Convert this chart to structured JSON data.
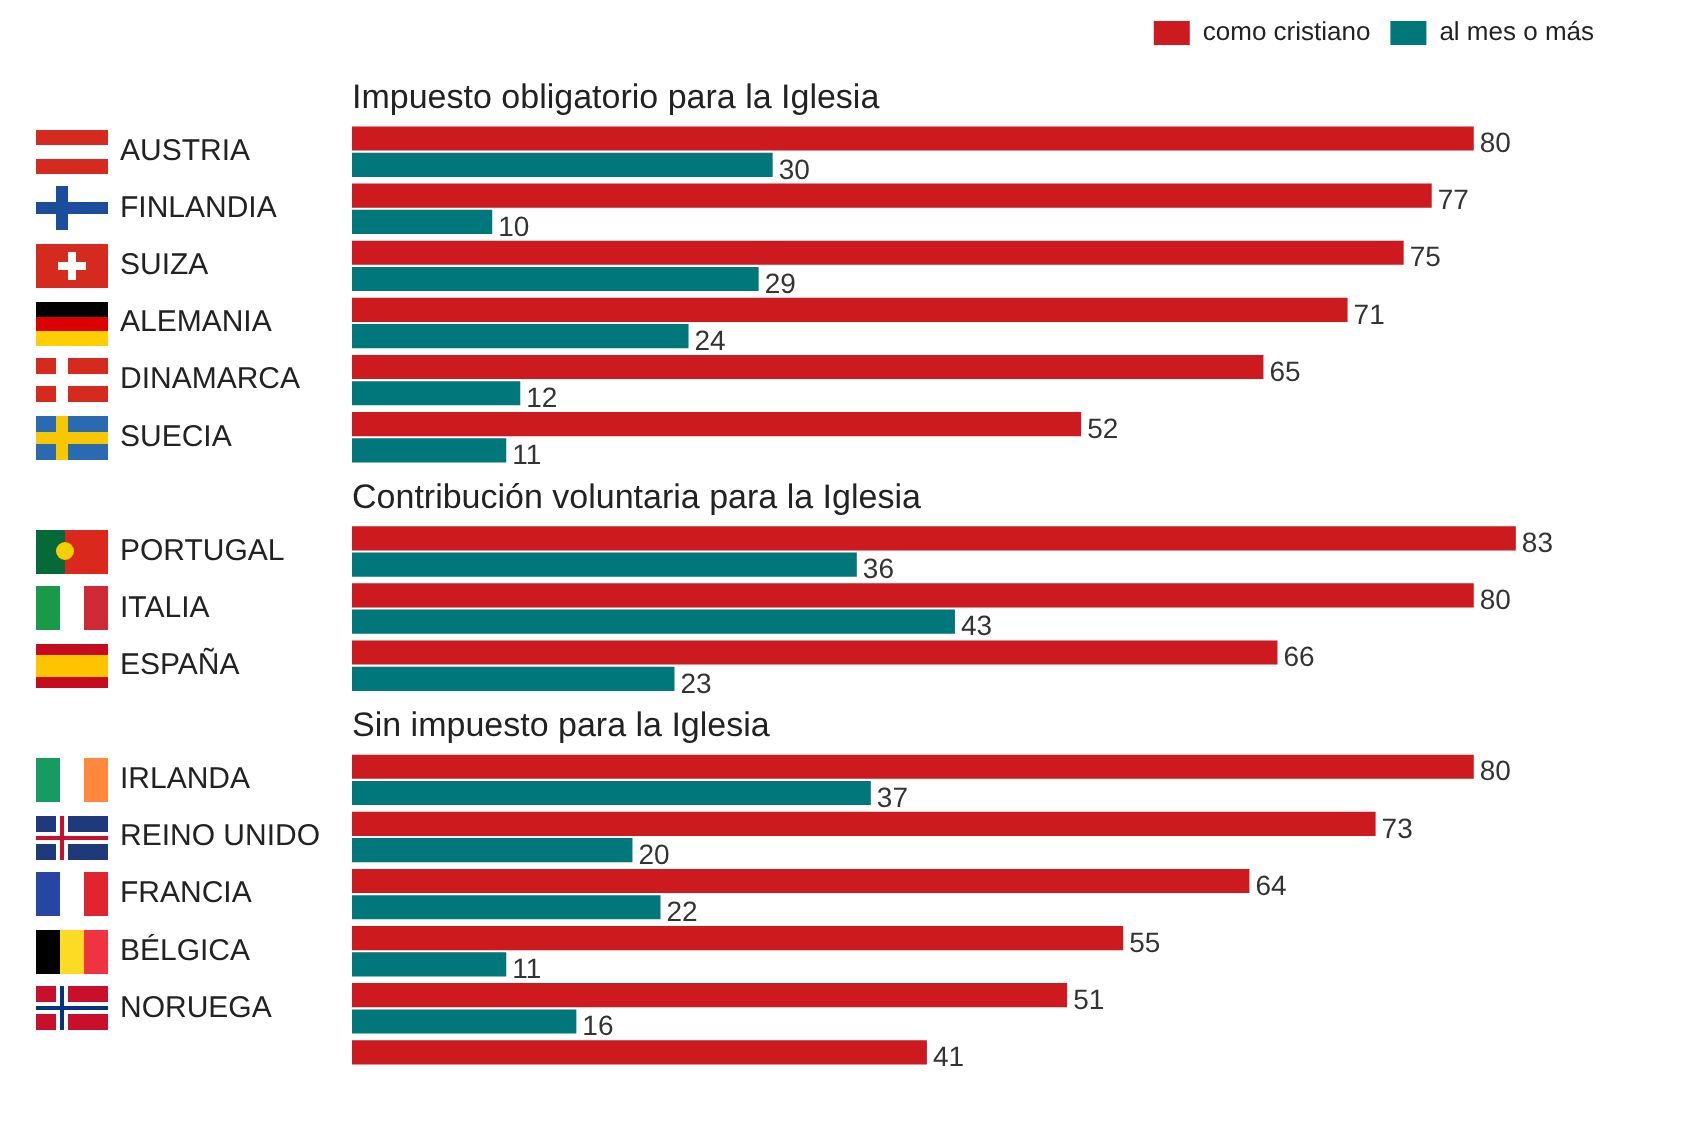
{
  "chart_data": {
    "type": "bar",
    "orientation": "horizontal",
    "categories": [
      null,
      "AUSTRIA",
      "FINLANDIA",
      "SUIZA",
      "ALEMANIA",
      "DINAMARCA",
      "SUECIA",
      null,
      "PORTUGAL",
      "ITALIA",
      "ESPAÑA",
      null,
      "IRLANDA",
      "REINO UNIDO",
      "FRANCIA",
      "BÉLGICA",
      "NORUEGA",
      null
    ],
    "series": [
      {
        "name": "como cristiano",
        "color": "#cc1a1f",
        "values": [
          null,
          80,
          77,
          75,
          71,
          65,
          52,
          null,
          83,
          80,
          66,
          null,
          80,
          73,
          64,
          55,
          51,
          41
        ]
      },
      {
        "name": "al mes o más",
        "color": "#00777b",
        "values": [
          null,
          30,
          10,
          29,
          24,
          12,
          11,
          null,
          36,
          43,
          23,
          null,
          37,
          20,
          22,
          11,
          16,
          null
        ]
      }
    ],
    "annotations": [
      "Impuesto obligatorio para la Iglesia",
      "Contribución voluntaria para la Iglesia",
      "Sin impuesto para la Iglesia"
    ],
    "data_labels": true,
    "grid": false,
    "legend": "top right",
    "tick_labels": "y"
  }
}
